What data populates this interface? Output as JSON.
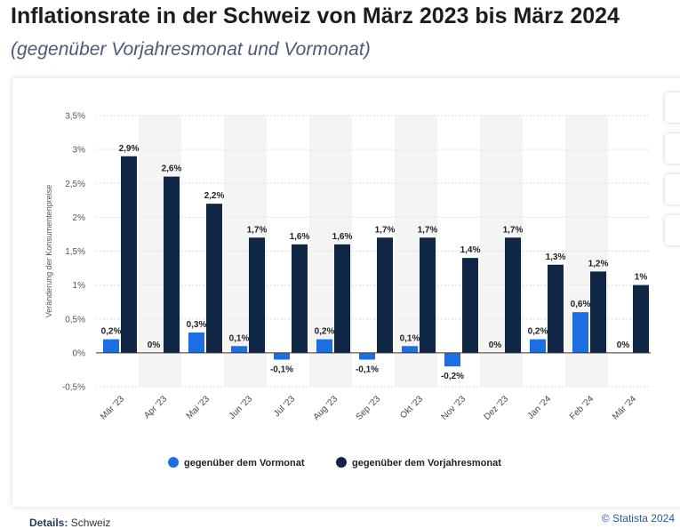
{
  "chart_data": {
    "type": "bar",
    "title": "Inflationsrate in der Schweiz von März 2023 bis März 2024",
    "subtitle": "(gegenüber Vorjahresmonat und Vormonat)",
    "y_label": "Veränderung der Konsumentenpreise",
    "categories": [
      "Mär '23",
      "Apr '23",
      "Mai '23",
      "Jun '23",
      "Jul '23",
      "Aug '23",
      "Sep '23",
      "Okt '23",
      "Nov '23",
      "Dez '23",
      "Jan '24",
      "Feb '24",
      "Mär '24"
    ],
    "series": [
      {
        "name": "gegenüber dem Vormonat",
        "color": "#1b6fe3",
        "values": [
          0.2,
          0,
          0.3,
          0.1,
          -0.1,
          0.2,
          -0.1,
          0.1,
          -0.2,
          0,
          0.2,
          0.6,
          0
        ],
        "value_labels": [
          "0,2%",
          "0%",
          "0,3%",
          "0,1%",
          "-0,1%",
          "0,2%",
          "-0,1%",
          "0,1%",
          "-0,2%",
          "0%",
          "0,2%",
          "0,6%",
          "0%"
        ]
      },
      {
        "name": "gegenüber dem Vorjahresmonat",
        "color": "#0f2744",
        "values": [
          2.9,
          2.6,
          2.2,
          1.7,
          1.6,
          1.6,
          1.7,
          1.7,
          1.4,
          1.7,
          1.3,
          1.2,
          1
        ],
        "value_labels": [
          "2,9%",
          "2,6%",
          "2,2%",
          "1,7%",
          "1,6%",
          "1,6%",
          "1,7%",
          "1,7%",
          "1,4%",
          "1,7%",
          "1,3%",
          "1,2%",
          "1%"
        ]
      }
    ],
    "ylim": [
      -0.5,
      3.5
    ],
    "yticks": [
      {
        "value": -0.5,
        "label": "-0,5%"
      },
      {
        "value": 0,
        "label": "0%"
      },
      {
        "value": 0.5,
        "label": "0,5%"
      },
      {
        "value": 1,
        "label": "1%"
      },
      {
        "value": 1.5,
        "label": "1,5%"
      },
      {
        "value": 2,
        "label": "2%"
      },
      {
        "value": 2.5,
        "label": "2,5%"
      },
      {
        "value": 3,
        "label": "3%"
      },
      {
        "value": 3.5,
        "label": "3,5%"
      }
    ],
    "grid": true,
    "details_label": "Details:",
    "details_value": "Schweiz",
    "source": "© Statista 2024"
  }
}
